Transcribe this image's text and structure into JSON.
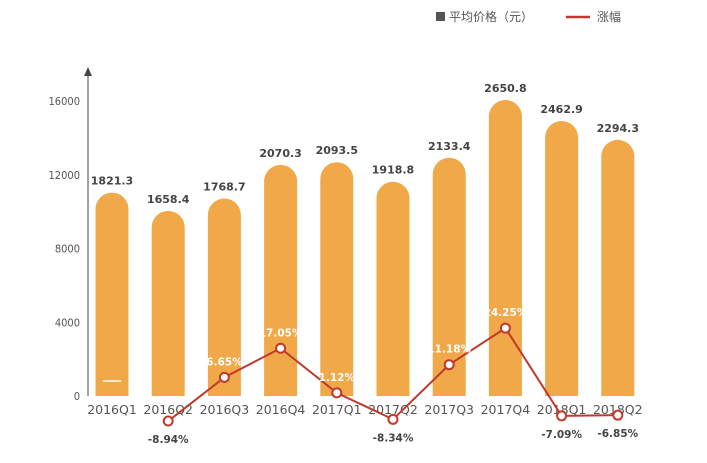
{
  "chart_data": {
    "type": "bar+line",
    "title": "",
    "categories": [
      "2016Q1",
      "2016Q2",
      "2016Q3",
      "2016Q4",
      "2017Q1",
      "2017Q2",
      "2017Q3",
      "2017Q4",
      "2018Q1",
      "2018Q2"
    ],
    "y_ticks": [
      "0",
      "4000",
      "8000",
      "12000",
      "16000"
    ],
    "ylim": [
      0,
      16000
    ],
    "series": [
      {
        "name": "平均价格（元）",
        "type": "bar",
        "color": "#F0A848",
        "values": [
          1821.3,
          1658.4,
          1768.7,
          2070.3,
          2093.5,
          1918.8,
          2133.4,
          2650.8,
          2462.9,
          2294.3
        ],
        "labels": [
          "1821.3",
          "1658.4",
          "1768.7",
          "2070.3",
          "2093.5",
          "1918.8",
          "2133.4",
          "2650.8",
          "2462.9",
          "2294.3"
        ]
      },
      {
        "name": "涨幅",
        "type": "line",
        "color": "#C0392B",
        "values": [
          null,
          -8.94,
          6.65,
          17.05,
          1.12,
          -8.34,
          11.18,
          24.25,
          -7.09,
          -6.85
        ],
        "labels": [
          "",
          "-8.94%",
          "6.65%",
          "17.05%",
          "1.12%",
          "-8.34%",
          "11.18%",
          "24.25%",
          "-7.09%",
          "-6.85%"
        ]
      }
    ],
    "legend_position": "top-right",
    "grid": false
  },
  "legend": {
    "bar_label": "平均价格（元）",
    "line_label": "涨幅",
    "bar_swatch": "#555555"
  }
}
